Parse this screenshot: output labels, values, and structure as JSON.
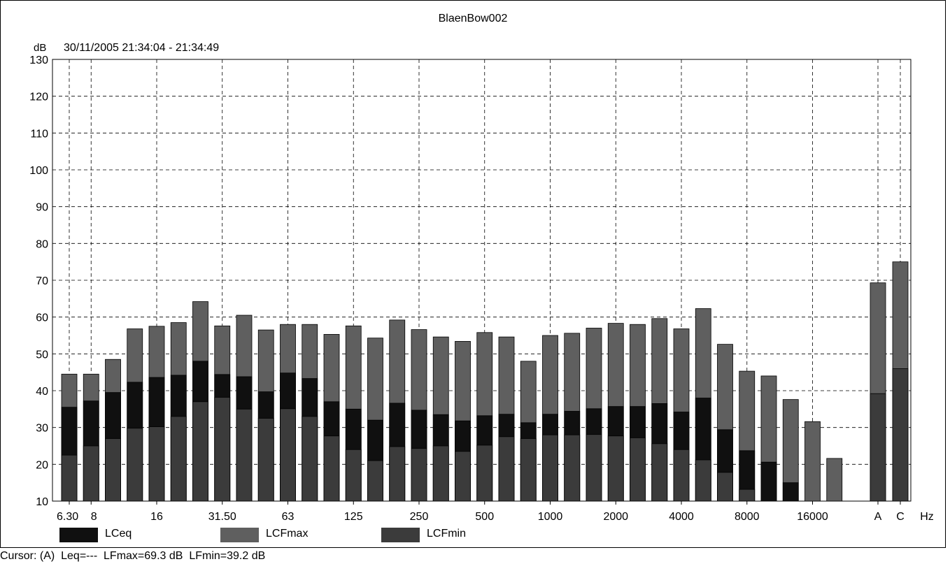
{
  "window": {
    "title": "BlaenBow002",
    "y_unit": "dB",
    "time_range": "30/11/2005 21:34:04 - 21:34:49",
    "status": "Cursor: (A)  Leq=---  LFmax=69.3 dB  LFmin=39.2 dB"
  },
  "colors": {
    "LCeq": "#101010",
    "LCFmax": "#5f5f5f",
    "LCFmin": "#3b3b3b",
    "grid": "#000000",
    "background": "#ffffff"
  },
  "chart_data": {
    "type": "bar",
    "title": "BlaenBow002",
    "ylabel": "dB",
    "xlabel": "Hz",
    "ylim": [
      10,
      130
    ],
    "yticks": [
      10,
      20,
      30,
      40,
      50,
      60,
      70,
      80,
      90,
      100,
      110,
      120,
      130
    ],
    "grid": true,
    "grid_style": "dashed",
    "legend_position": "bottom",
    "categories": [
      "6.3",
      "8",
      "10",
      "12.5",
      "16",
      "20",
      "25",
      "31.5",
      "40",
      "50",
      "63",
      "80",
      "100",
      "125",
      "160",
      "200",
      "250",
      "315",
      "400",
      "500",
      "630",
      "800",
      "1000",
      "1250",
      "1600",
      "2000",
      "2500",
      "3150",
      "4000",
      "5000",
      "6300",
      "8000",
      "10000",
      "12500",
      "16000",
      "20000",
      "A",
      "C"
    ],
    "tick_labels": [
      {
        "category": "6.3",
        "text": "6.30"
      },
      {
        "category": "8",
        "text": "8"
      },
      {
        "category": "16",
        "text": "16"
      },
      {
        "category": "31.5",
        "text": "31.50"
      },
      {
        "category": "63",
        "text": "63"
      },
      {
        "category": "125",
        "text": "125"
      },
      {
        "category": "250",
        "text": "250"
      },
      {
        "category": "500",
        "text": "500"
      },
      {
        "category": "1000",
        "text": "1000"
      },
      {
        "category": "2000",
        "text": "2000"
      },
      {
        "category": "4000",
        "text": "4000"
      },
      {
        "category": "8000",
        "text": "8000"
      },
      {
        "category": "16000",
        "text": "16000"
      },
      {
        "category": "A",
        "text": "A"
      },
      {
        "category": "C",
        "text": "C"
      }
    ],
    "series": [
      {
        "name": "LCFmax",
        "values": [
          44.5,
          44.5,
          48.5,
          56.8,
          57.5,
          58.5,
          64.2,
          57.6,
          60.5,
          56.5,
          58.0,
          58.0,
          55.3,
          57.6,
          54.3,
          59.2,
          56.6,
          54.6,
          53.4,
          55.8,
          54.6,
          48.0,
          55.0,
          55.6,
          57.0,
          58.3,
          58.0,
          59.6,
          56.8,
          62.3,
          52.6,
          45.3,
          44.0,
          37.6,
          31.6,
          21.6,
          69.3,
          75.0
        ]
      },
      {
        "name": "LCeq",
        "values": [
          35.5,
          37.2,
          39.5,
          42.3,
          43.6,
          44.2,
          48.0,
          44.4,
          43.8,
          39.7,
          44.8,
          43.3,
          37.0,
          35.0,
          32.0,
          36.6,
          34.7,
          33.5,
          31.8,
          33.2,
          33.6,
          31.3,
          33.6,
          34.4,
          35.1,
          35.7,
          35.7,
          36.5,
          34.2,
          38.0,
          29.4,
          23.7,
          20.6,
          15.0,
          null,
          null,
          null,
          null
        ]
      },
      {
        "name": "LCFmin",
        "values": [
          22.5,
          25.0,
          27.0,
          29.8,
          30.2,
          33.0,
          37.0,
          38.2,
          35.0,
          32.5,
          35.1,
          33.0,
          27.7,
          24.0,
          21.0,
          24.8,
          24.3,
          25.0,
          23.5,
          25.2,
          27.5,
          27.0,
          28.0,
          28.0,
          28.1,
          27.7,
          27.2,
          25.6,
          24.0,
          21.2,
          17.8,
          13.2,
          null,
          null,
          null,
          null,
          39.2,
          46.0
        ]
      }
    ]
  },
  "legend": {
    "items": [
      {
        "label": "LCeq",
        "color": "#101010"
      },
      {
        "label": "LCFmax",
        "color": "#5f5f5f"
      },
      {
        "label": "LCFmin",
        "color": "#3b3b3b"
      }
    ]
  }
}
